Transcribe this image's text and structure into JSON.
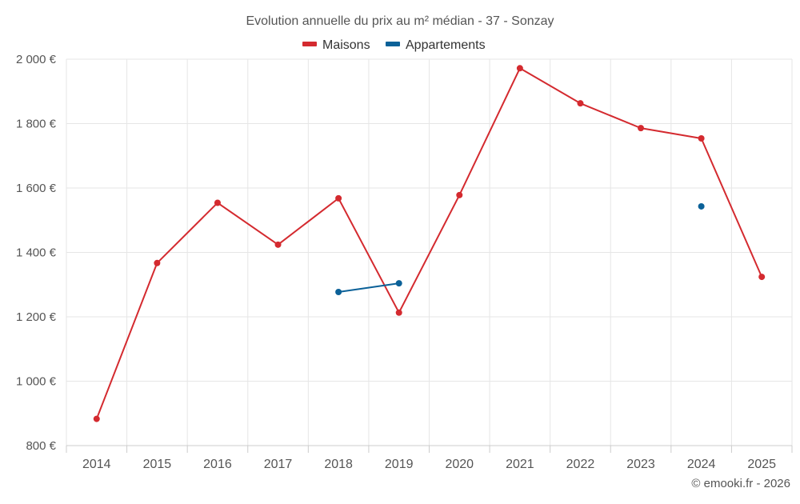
{
  "chart_data": {
    "type": "line",
    "title": "Evolution annuelle du prix au m² médian - 37 - Sonzay",
    "categories": [
      "2014",
      "2015",
      "2016",
      "2017",
      "2018",
      "2019",
      "2020",
      "2021",
      "2022",
      "2023",
      "2024",
      "2025"
    ],
    "ylim": [
      800,
      2000
    ],
    "yticks": [
      800,
      1000,
      1200,
      1400,
      1600,
      1800,
      2000
    ],
    "ytick_labels": [
      "800 €",
      "1 000 €",
      "1 200 €",
      "1 400 €",
      "1 600 €",
      "1 800 €",
      "2 000 €"
    ],
    "xlabel": "",
    "ylabel": "",
    "grid": true,
    "legend_position": "top-center",
    "series": [
      {
        "name": "Maisons",
        "color": "#d42a2f",
        "values": [
          883,
          1367,
          1554,
          1424,
          1568,
          1213,
          1578,
          1972,
          1863,
          1786,
          1754,
          1324
        ]
      },
      {
        "name": "Appartements",
        "color": "#0b6198",
        "values": [
          null,
          null,
          null,
          null,
          1277,
          1304,
          null,
          null,
          null,
          null,
          1543,
          null
        ]
      }
    ]
  },
  "credit": "© emooki.fr - 2026",
  "colors": {
    "text": "#555555",
    "grid": "#e6e6e6",
    "axis": "#cccccc"
  }
}
